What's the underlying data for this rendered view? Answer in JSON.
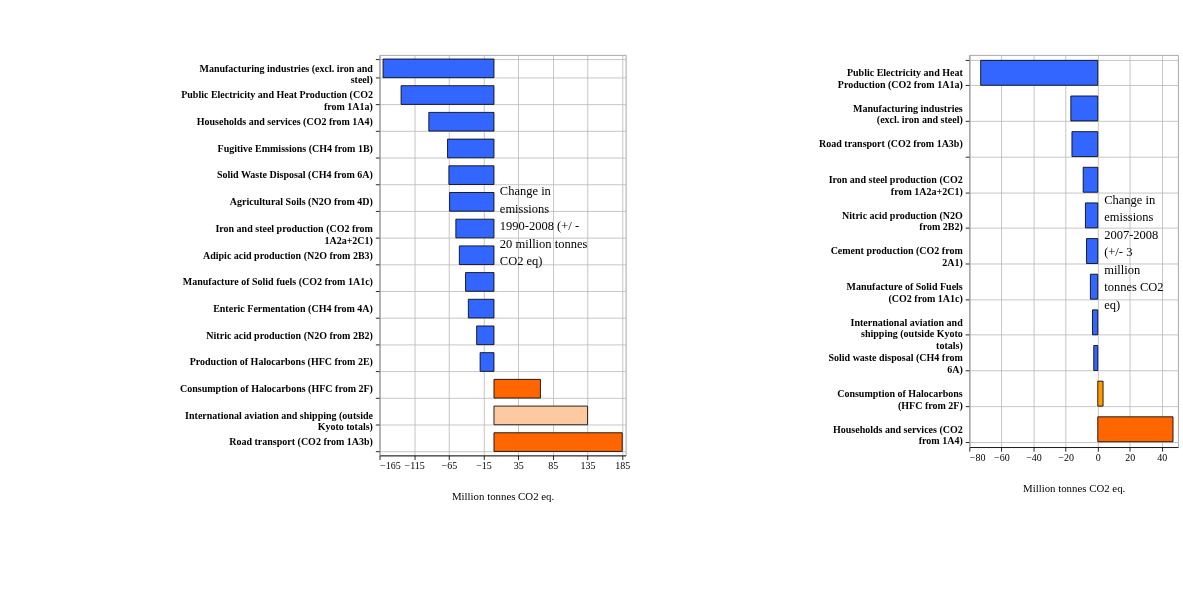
{
  "chart_data": [
    {
      "type": "bar",
      "orientation": "horizontal",
      "xlabel": "Million tonnes CO2 eq.",
      "categories": [
        "Manufacturing industries (excl. iron and steel)",
        "Public Electricity and Heat Production (CO2 from 1A1a)",
        "Households and services (CO2 from 1A4)",
        "Fugitive Emmissions (CH4 from 1B)",
        "Solid Waste Disposal (CH4 from 6A)",
        "Agricultural Soils (N2O from 4D)",
        "Iron and steel production (CO2 from 1A2a+2C1)",
        "Adipic acid production (N2O from 2B3)",
        "Manufacture of Solid fuels (CO2 from 1A1c)",
        "Enteric Fermentation (CH4 from 4A)",
        "Nitric acid production (N2O from 2B2)",
        "Production of Halocarbons (HFC from 2E)",
        "Consumption of Halocarbons (HFC from 2F)",
        "International aviation and shipping (outside Kyoto totals)",
        "Road transport (CO2 from 1A3b)"
      ],
      "values": [
        -160,
        -134,
        -94,
        -67,
        -65,
        -64,
        -55,
        -50,
        -41,
        -37,
        -25,
        -20,
        67,
        135,
        185
      ],
      "colors": [
        "#3366ff",
        "#3366ff",
        "#3366ff",
        "#3366ff",
        "#3366ff",
        "#3366ff",
        "#3366ff",
        "#3366ff",
        "#3366ff",
        "#3366ff",
        "#3366ff",
        "#3366ff",
        "#ff6600",
        "#fcc9a0",
        "#ff6600"
      ],
      "xlim": [
        -165,
        190
      ],
      "xticks": [
        -165,
        -115,
        -65,
        -15,
        35,
        85,
        135,
        185
      ],
      "grid": true,
      "annotations": [
        "Change in emissions 1990-2008 (+/ - 20 million tonnes CO2 eq)"
      ]
    },
    {
      "type": "bar",
      "orientation": "horizontal",
      "xlabel": "Million tonnes CO2 eq.",
      "categories": [
        "Public Electricity and Heat Production (CO2 from 1A1a)",
        "Manufacturing industries (excl. iron and steel)",
        "Road transport (CO2 from 1A3b)",
        "Iron and steel production (CO2 from 1A2a+2C1)",
        "Nitric acid production (N2O from 2B2)",
        "Cement production (CO2 from 2A1)",
        "Manufacture of Solid Fuels (CO2 from 1A1c)",
        "International aviation and shipping (outside Kyoto totals)",
        "Solid waste disposal (CH4 from 6A)",
        "Consumption of Halocarbons (HFC from 2F)",
        "Households and services (CO2 from 1A4)"
      ],
      "values": [
        -73,
        -16.8,
        -16.1,
        -9.1,
        -7.7,
        -7.0,
        -4.6,
        -3.3,
        -2.5,
        3.3,
        46.9
      ],
      "colors": [
        "#3366ff",
        "#3366ff",
        "#3366ff",
        "#3366ff",
        "#3366ff",
        "#3366ff",
        "#3366ff",
        "#3366ff",
        "#3366ff",
        "#ff9900",
        "#ff6600"
      ],
      "xlim": [
        -80,
        50
      ],
      "xticks": [
        -80,
        -60,
        -40,
        -20,
        0,
        20,
        40
      ],
      "grid": true,
      "annotations": [
        "Change in emissions 2007-2008 (+/- 3 million tonnes CO2 eq)"
      ]
    }
  ]
}
